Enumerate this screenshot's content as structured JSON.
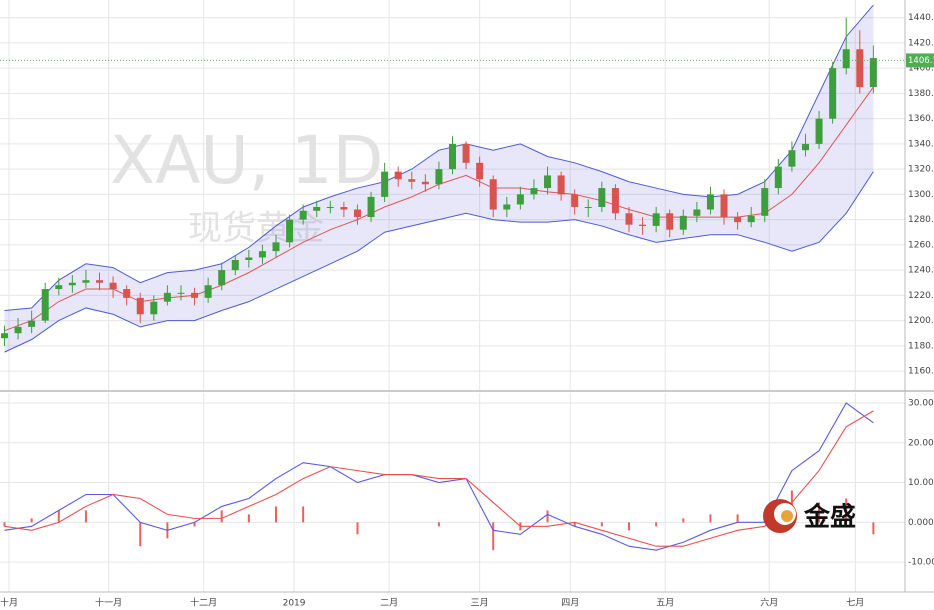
{
  "chart_data": [
    {
      "type": "candlestick",
      "title": "XAU, 1D",
      "subtitle": "现货黄金",
      "open": [
        1186,
        1190,
        1195,
        1200,
        1225,
        1228,
        1230,
        1232,
        1230,
        1225,
        1218,
        1205,
        1215,
        1222,
        1222,
        1218,
        1228,
        1240,
        1248,
        1250,
        1255,
        1262,
        1280,
        1287,
        1290,
        1290,
        1288,
        1282,
        1298,
        1318,
        1312,
        1310,
        1308,
        1320,
        1340,
        1325,
        1312,
        1288,
        1292,
        1300,
        1305,
        1315,
        1300,
        1290,
        1290,
        1305,
        1285,
        1276,
        1275,
        1285,
        1272,
        1283,
        1288,
        1300,
        1282,
        1278,
        1283,
        1305,
        1322,
        1335,
        1340,
        1360,
        1400,
        1415,
        1385
      ],
      "high": [
        1196,
        1202,
        1208,
        1230,
        1234,
        1236,
        1240,
        1238,
        1235,
        1228,
        1222,
        1220,
        1228,
        1228,
        1226,
        1234,
        1246,
        1252,
        1256,
        1260,
        1268,
        1284,
        1292,
        1295,
        1295,
        1294,
        1292,
        1302,
        1325,
        1322,
        1318,
        1316,
        1326,
        1346,
        1342,
        1330,
        1315,
        1298,
        1306,
        1312,
        1322,
        1318,
        1304,
        1296,
        1310,
        1308,
        1290,
        1282,
        1290,
        1288,
        1288,
        1294,
        1306,
        1304,
        1286,
        1290,
        1312,
        1328,
        1342,
        1348,
        1366,
        1405,
        1440,
        1430,
        1418
      ],
      "low": [
        1180,
        1185,
        1190,
        1198,
        1220,
        1222,
        1226,
        1224,
        1218,
        1212,
        1198,
        1200,
        1212,
        1216,
        1212,
        1214,
        1224,
        1236,
        1242,
        1245,
        1250,
        1258,
        1276,
        1282,
        1285,
        1282,
        1276,
        1278,
        1294,
        1306,
        1304,
        1302,
        1304,
        1316,
        1320,
        1306,
        1282,
        1282,
        1288,
        1296,
        1300,
        1295,
        1284,
        1282,
        1286,
        1280,
        1270,
        1268,
        1270,
        1266,
        1268,
        1278,
        1284,
        1276,
        1272,
        1274,
        1278,
        1300,
        1318,
        1330,
        1336,
        1356,
        1395,
        1380,
        1380
      ],
      "close": [
        1190,
        1195,
        1200,
        1225,
        1228,
        1230,
        1232,
        1230,
        1225,
        1218,
        1205,
        1215,
        1222,
        1222,
        1218,
        1228,
        1240,
        1248,
        1250,
        1255,
        1262,
        1280,
        1287,
        1290,
        1290,
        1288,
        1282,
        1298,
        1318,
        1312,
        1310,
        1308,
        1320,
        1340,
        1325,
        1312,
        1288,
        1292,
        1300,
        1305,
        1315,
        1300,
        1290,
        1290,
        1305,
        1285,
        1276,
        1275,
        1285,
        1272,
        1283,
        1288,
        1300,
        1282,
        1278,
        1283,
        1305,
        1322,
        1335,
        1340,
        1360,
        1400,
        1415,
        1385,
        1408
      ],
      "up_color": "#3e9e3e",
      "down_color": "#d9534f",
      "bands": {
        "x": [
          0,
          2,
          4,
          6,
          8,
          10,
          12,
          14,
          16,
          18,
          20,
          22,
          24,
          26,
          28,
          30,
          32,
          34,
          36,
          38,
          40,
          42,
          44,
          46,
          48,
          50,
          52,
          54,
          56,
          58,
          60,
          62,
          64
        ],
        "upper": [
          1208,
          1210,
          1232,
          1245,
          1242,
          1230,
          1238,
          1240,
          1245,
          1258,
          1275,
          1290,
          1298,
          1305,
          1310,
          1320,
          1335,
          1340,
          1335,
          1340,
          1330,
          1325,
          1318,
          1310,
          1305,
          1300,
          1298,
          1300,
          1310,
          1335,
          1380,
          1425,
          1450
        ],
        "middle": [
          1192,
          1200,
          1215,
          1225,
          1225,
          1215,
          1218,
          1220,
          1228,
          1238,
          1250,
          1262,
          1272,
          1280,
          1290,
          1298,
          1308,
          1315,
          1305,
          1305,
          1302,
          1300,
          1295,
          1288,
          1282,
          1282,
          1282,
          1282,
          1285,
          1300,
          1325,
          1355,
          1385
        ],
        "lower": [
          1175,
          1185,
          1200,
          1210,
          1205,
          1195,
          1200,
          1200,
          1208,
          1215,
          1225,
          1235,
          1245,
          1255,
          1270,
          1275,
          1280,
          1285,
          1280,
          1278,
          1278,
          1280,
          1275,
          1268,
          1262,
          1265,
          1268,
          1268,
          1262,
          1255,
          1262,
          1285,
          1318
        ],
        "band_color": "#4c5bd4",
        "middle_color": "#e05555",
        "fill": "rgba(120,120,220,0.18)"
      },
      "last_price": {
        "value": 1406.12,
        "label": "1406.12"
      },
      "last_price_color": "#4caf50",
      "xlim": [
        -0.33,
        66.33
      ],
      "ylim": [
        1145,
        1454
      ],
      "yticks": [
        {
          "value": 1160,
          "label": "1160.00"
        },
        {
          "value": 1180,
          "label": "1180.00"
        },
        {
          "value": 1200,
          "label": "1200.00"
        },
        {
          "value": 1220,
          "label": "1220.00"
        },
        {
          "value": 1240,
          "label": "1240.00"
        },
        {
          "value": 1260,
          "label": "1260.00"
        },
        {
          "value": 1280,
          "label": "1280.00"
        },
        {
          "value": 1300,
          "label": "1300.00"
        },
        {
          "value": 1320,
          "label": "1320.00"
        },
        {
          "value": 1340,
          "label": "1340.00"
        },
        {
          "value": 1360,
          "label": "1360.00"
        },
        {
          "value": 1380,
          "label": "1380.00"
        },
        {
          "value": 1400,
          "label": "1400.00"
        },
        {
          "value": 1420,
          "label": "1420.00"
        },
        {
          "value": 1440,
          "label": "1440.00"
        }
      ],
      "grid": true
    },
    {
      "type": "macd",
      "x": [
        0,
        2,
        4,
        6,
        8,
        10,
        12,
        14,
        16,
        18,
        20,
        22,
        24,
        26,
        28,
        30,
        32,
        34,
        36,
        38,
        40,
        42,
        44,
        46,
        48,
        50,
        52,
        54,
        56,
        58,
        60,
        62,
        64
      ],
      "series": [
        {
          "color": "#5a5ae0",
          "values": [
            -2,
            -1,
            3,
            7,
            7,
            0,
            -2,
            0,
            4,
            6,
            11,
            15,
            14,
            10,
            12,
            12,
            10,
            11,
            -2,
            -3,
            2,
            -1,
            -3,
            -6,
            -7,
            -5,
            -2,
            0,
            0,
            13,
            18,
            30,
            25
          ]
        },
        {
          "color": "#e85050",
          "values": [
            -1,
            -2,
            0,
            4,
            7,
            6,
            2,
            1,
            1,
            4,
            7,
            11,
            14,
            13,
            12,
            12,
            11,
            11,
            5,
            -1,
            -1,
            0,
            -2,
            -4,
            -6,
            -6,
            -4,
            -2,
            -1,
            5,
            13,
            24,
            28
          ]
        }
      ],
      "histogram": {
        "color": "#e86060",
        "values": [
          -1,
          1,
          3,
          3,
          0,
          -6,
          -4,
          -1,
          3,
          2,
          4,
          4,
          0,
          -3,
          0,
          0,
          -1,
          0,
          -7,
          -2,
          3,
          -1,
          -1,
          -2,
          -1,
          1,
          2,
          2,
          1,
          8,
          5,
          6,
          -3
        ]
      },
      "xlim": [
        -0.33,
        66.33
      ],
      "ylim": [
        -17.5,
        32.5
      ],
      "yticks": [
        {
          "value": 30,
          "label": "30.000"
        },
        {
          "value": 20,
          "label": "20.000"
        },
        {
          "value": 10,
          "label": "10.000"
        },
        {
          "value": 0,
          "label": "0.0000"
        },
        {
          "value": -10,
          "label": "-10.000"
        }
      ],
      "xticks": [
        {
          "value": 0.33,
          "label": "十月"
        },
        {
          "value": 7.67,
          "label": "十一月"
        },
        {
          "value": 14.67,
          "label": "十二月"
        },
        {
          "value": 21.33,
          "label": "2019"
        },
        {
          "value": 28.33,
          "label": "二月"
        },
        {
          "value": 35,
          "label": "三月"
        },
        {
          "value": 41.67,
          "label": "四月"
        },
        {
          "value": 48.67,
          "label": "五月"
        },
        {
          "value": 56.33,
          "label": "六月"
        },
        {
          "value": 62.67,
          "label": "七月"
        }
      ],
      "grid": true
    }
  ],
  "logo": {
    "text": "金盛"
  }
}
